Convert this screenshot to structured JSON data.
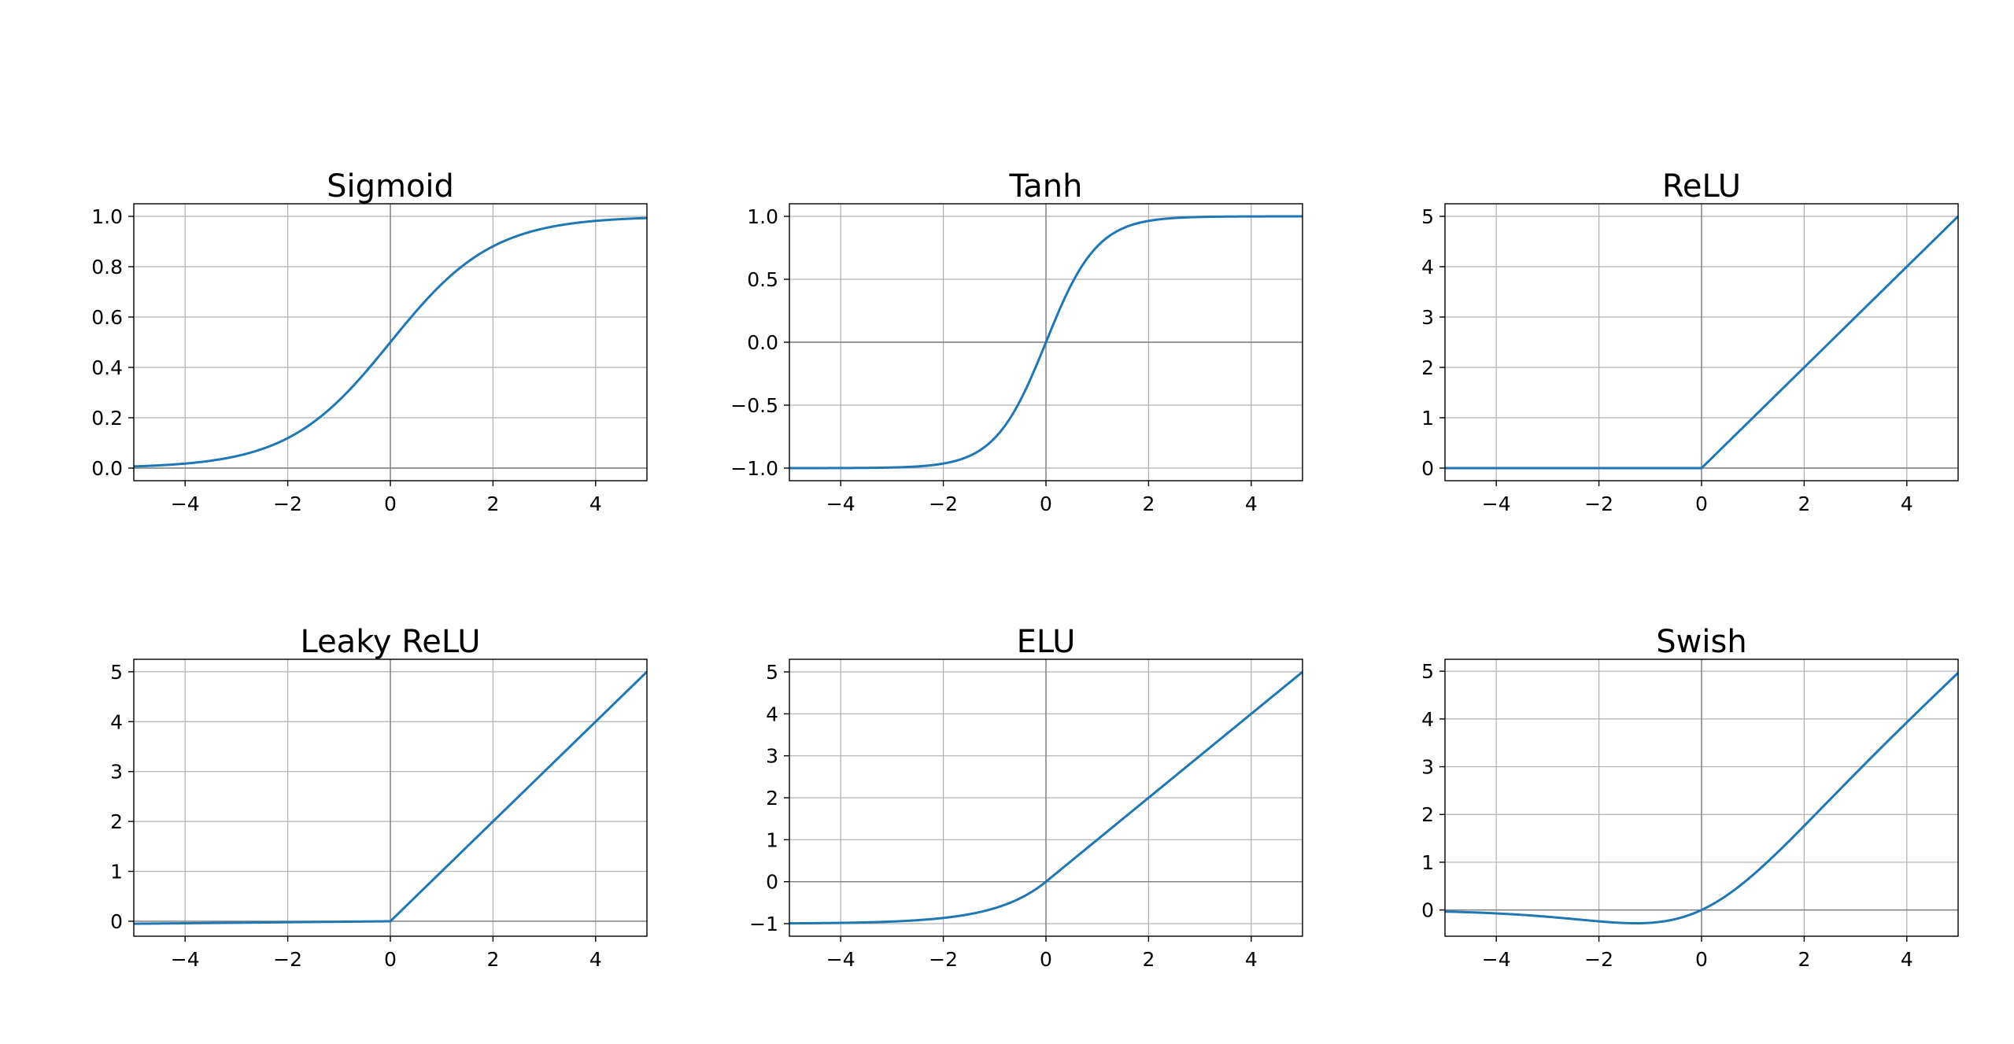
{
  "figure": {
    "background": "#ffffff",
    "line_color": "#1f77b4",
    "grid_color": "#b0b0b0",
    "zero_line_color": "#808080"
  },
  "chart_data": [
    {
      "type": "line",
      "title": "Sigmoid",
      "function": "sigmoid",
      "xlabel": "",
      "ylabel": "",
      "xlim": [
        -5,
        5
      ],
      "ylim": [
        -0.05,
        1.05
      ],
      "xticks": [
        -4,
        -2,
        0,
        2,
        4
      ],
      "xtick_labels": [
        "−4",
        "−2",
        "0",
        "2",
        "4"
      ],
      "yticks": [
        0.0,
        0.2,
        0.4,
        0.6,
        0.8,
        1.0
      ],
      "ytick_labels": [
        "0.0",
        "0.2",
        "0.4",
        "0.6",
        "0.8",
        "1.0"
      ],
      "grid": true,
      "zero_lines": true,
      "series": [
        {
          "x": [
            -5,
            -4,
            -3,
            -2,
            -1,
            0,
            1,
            2,
            3,
            4,
            5
          ],
          "y": [
            0.007,
            0.018,
            0.047,
            0.119,
            0.269,
            0.5,
            0.731,
            0.881,
            0.953,
            0.982,
            0.993
          ]
        }
      ]
    },
    {
      "type": "line",
      "title": "Tanh",
      "function": "tanh",
      "xlabel": "",
      "ylabel": "",
      "xlim": [
        -5,
        5
      ],
      "ylim": [
        -1.1,
        1.1
      ],
      "xticks": [
        -4,
        -2,
        0,
        2,
        4
      ],
      "xtick_labels": [
        "−4",
        "−2",
        "0",
        "2",
        "4"
      ],
      "yticks": [
        -1.0,
        -0.5,
        0.0,
        0.5,
        1.0
      ],
      "ytick_labels": [
        "−1.0",
        "−0.5",
        "0.0",
        "0.5",
        "1.0"
      ],
      "grid": true,
      "zero_lines": true,
      "series": [
        {
          "x": [
            -5,
            -4,
            -3,
            -2,
            -1,
            0,
            1,
            2,
            3,
            4,
            5
          ],
          "y": [
            -1.0,
            -0.999,
            -0.995,
            -0.964,
            -0.762,
            0.0,
            0.762,
            0.964,
            0.995,
            0.999,
            1.0
          ]
        }
      ]
    },
    {
      "type": "line",
      "title": "ReLU",
      "function": "relu",
      "xlabel": "",
      "ylabel": "",
      "xlim": [
        -5,
        5
      ],
      "ylim": [
        -0.25,
        5.25
      ],
      "xticks": [
        -4,
        -2,
        0,
        2,
        4
      ],
      "xtick_labels": [
        "−4",
        "−2",
        "0",
        "2",
        "4"
      ],
      "yticks": [
        0,
        1,
        2,
        3,
        4,
        5
      ],
      "ytick_labels": [
        "0",
        "1",
        "2",
        "3",
        "4",
        "5"
      ],
      "grid": true,
      "zero_lines": true,
      "series": [
        {
          "x": [
            -5,
            0,
            5
          ],
          "y": [
            0,
            0,
            5
          ]
        }
      ]
    },
    {
      "type": "line",
      "title": "Leaky ReLU",
      "function": "leaky_relu",
      "xlabel": "",
      "ylabel": "",
      "xlim": [
        -5,
        5
      ],
      "ylim": [
        -0.3,
        5.25
      ],
      "xticks": [
        -4,
        -2,
        0,
        2,
        4
      ],
      "xtick_labels": [
        "−4",
        "−2",
        "0",
        "2",
        "4"
      ],
      "yticks": [
        0,
        1,
        2,
        3,
        4,
        5
      ],
      "ytick_labels": [
        "0",
        "1",
        "2",
        "3",
        "4",
        "5"
      ],
      "grid": true,
      "zero_lines": true,
      "series": [
        {
          "x": [
            -5,
            0,
            5
          ],
          "y": [
            -0.05,
            0,
            5
          ]
        }
      ]
    },
    {
      "type": "line",
      "title": "ELU",
      "function": "elu",
      "xlabel": "",
      "ylabel": "",
      "xlim": [
        -5,
        5
      ],
      "ylim": [
        -1.3,
        5.3
      ],
      "xticks": [
        -4,
        -2,
        0,
        2,
        4
      ],
      "xtick_labels": [
        "−4",
        "−2",
        "0",
        "2",
        "4"
      ],
      "yticks": [
        -1,
        0,
        1,
        2,
        3,
        4,
        5
      ],
      "ytick_labels": [
        "−1",
        "0",
        "1",
        "2",
        "3",
        "4",
        "5"
      ],
      "grid": true,
      "zero_lines": true,
      "series": [
        {
          "x": [
            -5,
            -4,
            -3,
            -2,
            -1,
            0,
            1,
            2,
            3,
            4,
            5
          ],
          "y": [
            -0.993,
            -0.982,
            -0.95,
            -0.865,
            -0.632,
            0,
            1,
            2,
            3,
            4,
            5
          ]
        }
      ]
    },
    {
      "type": "line",
      "title": "Swish",
      "function": "swish",
      "xlabel": "",
      "ylabel": "",
      "xlim": [
        -5,
        5
      ],
      "ylim": [
        -0.55,
        5.25
      ],
      "xticks": [
        -4,
        -2,
        0,
        2,
        4
      ],
      "xtick_labels": [
        "−4",
        "−2",
        "0",
        "2",
        "4"
      ],
      "yticks": [
        0,
        1,
        2,
        3,
        4,
        5
      ],
      "ytick_labels": [
        "0",
        "1",
        "2",
        "3",
        "4",
        "5"
      ],
      "grid": true,
      "zero_lines": true,
      "series": [
        {
          "x": [
            -5,
            -4,
            -3,
            -2,
            -1.28,
            -1,
            0,
            1,
            2,
            3,
            4,
            5
          ],
          "y": [
            -0.033,
            -0.072,
            -0.142,
            -0.238,
            -0.278,
            -0.269,
            0,
            0.731,
            1.762,
            2.858,
            3.928,
            4.967
          ]
        }
      ]
    }
  ]
}
